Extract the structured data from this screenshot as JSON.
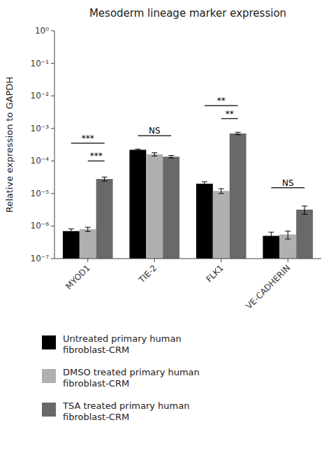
{
  "chart_data": {
    "type": "bar",
    "title": "Mesoderm lineage marker expression",
    "ylabel": "Relative expression to GAPDH",
    "categories": [
      "MYOD1",
      "TIE-2",
      "FLK1",
      "VE-CADHERIN"
    ],
    "series": [
      {
        "name": "Untreated primary human\nfibroblast-CRM",
        "color": "#000000",
        "values": [
          7e-07,
          0.00022,
          2e-05,
          5e-07
        ],
        "errors": [
          1.2e-07,
          1.2e-05,
          3e-06,
          1.5e-07
        ]
      },
      {
        "name": "DMSO treated primary human\nfibroblast-CRM",
        "color": "#b0b0b0",
        "values": [
          8e-07,
          0.00016,
          1.2e-05,
          5.5e-07
        ],
        "errors": [
          1.2e-07,
          1.8e-05,
          2e-06,
          1.5e-07
        ]
      },
      {
        "name": "TSA treated primary human\nfibroblast-CRM",
        "color": "#696969",
        "values": [
          2.8e-05,
          0.000135,
          0.0007,
          3.2e-06
        ],
        "errors": [
          4e-06,
          1.2e-05,
          6e-05,
          9e-07
        ]
      }
    ],
    "log": "y",
    "ylim": [
      1e-07,
      1.0
    ],
    "yticks": [
      {
        "value": 1e-07,
        "label": "10⁻⁷"
      },
      {
        "value": 1e-06,
        "label": "10⁻⁶"
      },
      {
        "value": 1e-05,
        "label": "10⁻⁵"
      },
      {
        "value": 0.0001,
        "label": "10⁻⁴"
      },
      {
        "value": 0.001,
        "label": "10⁻³"
      },
      {
        "value": 0.01,
        "label": "10⁻²"
      },
      {
        "value": 0.1,
        "label": "10⁻¹"
      },
      {
        "value": 1.0,
        "label": "10⁰"
      }
    ],
    "annotations": [
      {
        "text": "***",
        "category": 0,
        "series": [
          0,
          2
        ],
        "y": 0.00035
      },
      {
        "text": "***",
        "category": 0,
        "series": [
          1,
          2
        ],
        "y": 0.0001
      },
      {
        "text": "NS",
        "category": 1,
        "series": [
          0,
          2
        ],
        "y": 0.0006
      },
      {
        "text": "**",
        "category": 2,
        "series": [
          0,
          2
        ],
        "y": 0.005
      },
      {
        "text": "**",
        "category": 2,
        "series": [
          1,
          2
        ],
        "y": 0.002
      },
      {
        "text": "NS",
        "category": 3,
        "series": [
          0,
          2
        ],
        "y": 1.5e-05
      }
    ],
    "grid": false,
    "legend": "bottom"
  }
}
